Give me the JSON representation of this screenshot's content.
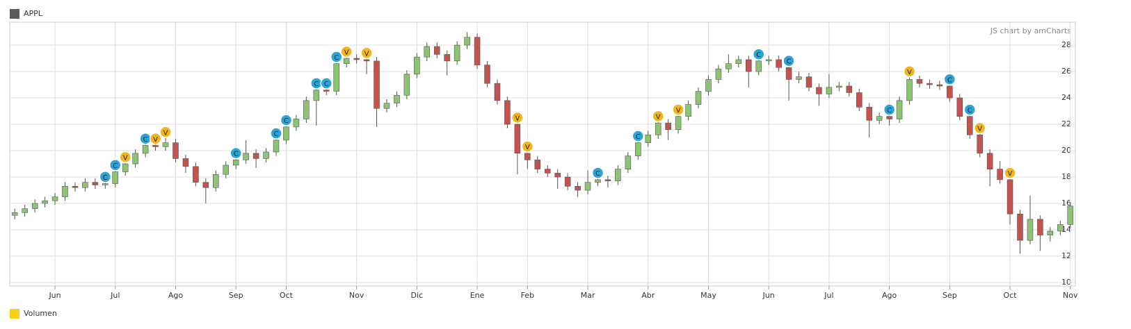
{
  "chart_data": {
    "type": "candlestick",
    "credit": "JS chart by amCharts",
    "categories": [
      null,
      null,
      null,
      null,
      "Jun",
      null,
      null,
      null,
      null,
      null,
      "Jul",
      null,
      null,
      null,
      null,
      null,
      "Ago",
      null,
      null,
      null,
      null,
      null,
      "Sep",
      null,
      null,
      null,
      null,
      "Oct",
      null,
      null,
      null,
      null,
      null,
      null,
      "Nov",
      null,
      null,
      null,
      null,
      null,
      "Dic",
      null,
      null,
      null,
      null,
      null,
      "Ene",
      null,
      null,
      null,
      null,
      "Feb",
      null,
      null,
      null,
      null,
      null,
      "Mar",
      null,
      null,
      null,
      null,
      null,
      "Abr",
      null,
      null,
      null,
      null,
      null,
      "May",
      null,
      null,
      null,
      null,
      null,
      "Jun",
      null,
      null,
      null,
      null,
      null,
      "Jul",
      null,
      null,
      null,
      null,
      null,
      "Ago",
      null,
      null,
      null,
      null,
      null,
      "Sep",
      null,
      null,
      null,
      null,
      null,
      "Oct",
      null,
      null,
      null,
      null,
      null,
      "Nov"
    ],
    "series": [
      {
        "name": "APPL",
        "color": "#5a5a5a",
        "up_color": "#8cc474",
        "down_color": "#c4524f",
        "open": [
          15.1,
          15.3,
          15.6,
          16.0,
          16.2,
          16.5,
          17.3,
          17.2,
          17.6,
          17.4,
          17.5,
          18.4,
          19.0,
          19.8,
          20.4,
          20.3,
          20.6,
          19.4,
          18.8,
          17.6,
          17.2,
          18.2,
          18.9,
          19.3,
          19.8,
          19.4,
          19.9,
          20.8,
          21.8,
          22.4,
          23.8,
          24.6,
          24.5,
          26.6,
          27.0,
          26.9,
          26.8,
          23.2,
          23.6,
          24.2,
          25.8,
          27.1,
          27.9,
          27.3,
          26.8,
          28.0,
          28.6,
          26.5,
          25.1,
          23.8,
          22.0,
          19.8,
          19.3,
          18.6,
          18.3,
          18.0,
          17.3,
          17.0,
          17.6,
          17.8,
          17.7,
          18.6,
          19.6,
          20.6,
          21.2,
          22.1,
          21.6,
          22.6,
          23.5,
          24.5,
          25.4,
          26.2,
          26.6,
          26.9,
          26.0,
          26.8,
          26.9,
          26.3,
          25.4,
          25.6,
          24.8,
          24.3,
          24.8,
          24.9,
          24.4,
          23.3,
          22.3,
          22.6,
          22.4,
          23.8,
          25.4,
          25.1,
          25.0,
          24.9,
          24.0,
          22.6,
          21.2,
          19.8,
          18.6,
          17.8,
          15.2,
          13.2,
          14.8,
          13.6,
          13.9,
          14.4
        ],
        "high": [
          15.6,
          15.9,
          16.3,
          16.5,
          16.8,
          17.6,
          17.6,
          17.9,
          17.9,
          17.8,
          18.7,
          19.3,
          20.1,
          20.7,
          20.7,
          21.2,
          20.9,
          19.7,
          19.1,
          17.9,
          18.5,
          19.2,
          19.6,
          20.8,
          20.1,
          20.2,
          21.1,
          22.1,
          22.7,
          24.1,
          24.9,
          24.9,
          26.9,
          27.3,
          27.3,
          27.2,
          27.1,
          23.9,
          24.5,
          26.1,
          27.4,
          28.2,
          28.2,
          27.6,
          28.3,
          29.0,
          28.9,
          26.8,
          25.4,
          24.1,
          22.3,
          20.1,
          19.6,
          18.9,
          18.6,
          18.3,
          17.6,
          18.5,
          18.1,
          18.1,
          18.9,
          19.9,
          20.9,
          21.5,
          22.4,
          22.4,
          22.9,
          23.8,
          24.8,
          25.7,
          26.5,
          27.3,
          27.2,
          27.2,
          27.1,
          27.2,
          27.2,
          26.6,
          26.0,
          25.9,
          25.1,
          25.8,
          25.2,
          25.2,
          24.7,
          23.6,
          22.9,
          22.9,
          24.1,
          25.8,
          25.7,
          25.4,
          25.3,
          25.2,
          24.3,
          22.9,
          21.5,
          20.1,
          19.2,
          18.1,
          15.5,
          16.6,
          15.1,
          14.2,
          14.7,
          16.1
        ],
        "low": [
          14.8,
          15.0,
          15.3,
          15.7,
          15.9,
          16.2,
          16.9,
          16.9,
          17.1,
          17.1,
          17.2,
          18.1,
          18.7,
          19.5,
          20.0,
          20.0,
          19.1,
          18.3,
          17.3,
          16.0,
          16.9,
          17.9,
          18.6,
          19.0,
          18.7,
          19.1,
          19.6,
          20.5,
          21.5,
          22.1,
          21.9,
          24.2,
          24.2,
          26.3,
          26.6,
          25.8,
          21.8,
          22.9,
          23.3,
          23.9,
          25.5,
          26.8,
          27.0,
          25.7,
          26.5,
          27.7,
          26.2,
          24.8,
          23.5,
          21.7,
          18.2,
          18.6,
          18.3,
          18.0,
          17.1,
          17.0,
          16.5,
          16.7,
          17.3,
          17.2,
          17.4,
          18.3,
          19.3,
          20.3,
          20.9,
          20.8,
          21.3,
          22.3,
          23.2,
          24.2,
          25.1,
          25.9,
          26.3,
          24.8,
          25.7,
          26.5,
          26.0,
          23.8,
          25.1,
          24.5,
          23.4,
          24.0,
          24.5,
          24.1,
          23.0,
          21.0,
          22.0,
          21.9,
          22.1,
          23.5,
          24.8,
          24.7,
          24.6,
          23.7,
          22.3,
          20.9,
          19.5,
          17.3,
          17.5,
          14.4,
          12.2,
          12.9,
          12.4,
          13.1,
          13.6,
          14.1
        ],
        "close": [
          15.3,
          15.6,
          16.0,
          16.2,
          16.5,
          17.3,
          17.2,
          17.6,
          17.4,
          17.5,
          18.4,
          19.0,
          19.8,
          20.4,
          20.3,
          20.6,
          19.4,
          18.8,
          17.6,
          17.2,
          18.2,
          18.9,
          19.3,
          19.8,
          19.4,
          19.9,
          20.8,
          21.8,
          22.4,
          23.8,
          24.6,
          24.5,
          26.6,
          27.0,
          26.9,
          26.8,
          23.2,
          23.6,
          24.2,
          25.8,
          27.1,
          27.9,
          27.3,
          26.8,
          28.0,
          28.6,
          26.5,
          25.1,
          23.8,
          22.0,
          19.8,
          19.3,
          18.6,
          18.3,
          18.0,
          17.3,
          17.0,
          17.6,
          17.8,
          17.7,
          18.6,
          19.6,
          20.6,
          21.2,
          22.1,
          21.6,
          22.6,
          23.5,
          24.5,
          25.4,
          26.2,
          26.6,
          26.9,
          26.0,
          26.8,
          26.9,
          26.3,
          25.4,
          25.6,
          24.8,
          24.3,
          24.8,
          24.9,
          24.4,
          23.3,
          22.3,
          22.6,
          22.4,
          23.8,
          25.4,
          25.1,
          25.0,
          24.9,
          24.0,
          22.6,
          21.2,
          19.8,
          18.6,
          17.8,
          15.2,
          13.2,
          14.8,
          13.6,
          13.9,
          14.4,
          15.8
        ],
        "events": [
          null,
          null,
          null,
          null,
          null,
          null,
          null,
          null,
          null,
          "C",
          "C",
          "V",
          null,
          "C",
          "V",
          "V",
          null,
          null,
          null,
          null,
          null,
          null,
          "C",
          null,
          null,
          null,
          "C",
          "C",
          null,
          null,
          "C",
          "C",
          "C",
          "V",
          null,
          "V",
          null,
          null,
          null,
          null,
          null,
          null,
          null,
          null,
          null,
          null,
          null,
          null,
          null,
          null,
          "V",
          "V",
          null,
          null,
          null,
          null,
          null,
          null,
          "C",
          null,
          null,
          null,
          "C",
          null,
          "V",
          null,
          "V",
          null,
          null,
          null,
          null,
          null,
          null,
          null,
          "C",
          null,
          null,
          "C",
          null,
          null,
          null,
          null,
          null,
          null,
          null,
          null,
          null,
          "C",
          null,
          "V",
          null,
          null,
          null,
          "C",
          null,
          "C",
          "V",
          null,
          null,
          "V",
          null,
          null,
          null,
          null,
          null,
          null
        ]
      }
    ],
    "markers": [
      {
        "label": "C",
        "color": "#2ea3d6"
      },
      {
        "label": "V",
        "color": "#f2b61c"
      }
    ],
    "volume_legend": {
      "name": "Volumen",
      "color": "#f7d117"
    },
    "ylim": [
      9.74,
      29.74
    ],
    "yticks": [
      10,
      12,
      14,
      16,
      18,
      20,
      22,
      24,
      26,
      28
    ],
    "grid": true
  }
}
